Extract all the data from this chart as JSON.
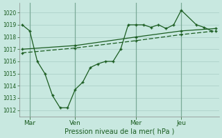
{
  "bg_color": "#c8e8e0",
  "grid_color": "#a8ccc4",
  "line_color": "#1a5c20",
  "xlabel": "Pression niveau de la mer( hPa )",
  "ylabel_vals": [
    1012,
    1013,
    1014,
    1015,
    1016,
    1017,
    1018,
    1019,
    1020
  ],
  "ylim": [
    1011.5,
    1020.8
  ],
  "xtick_labels": [
    "Mar",
    "Ven",
    "Mer",
    "Jeu"
  ],
  "xtick_positions": [
    0.5,
    3.5,
    7.5,
    10.5
  ],
  "xlim": [
    -0.2,
    13.0
  ],
  "vline_positions": [
    0.5,
    3.5,
    7.5,
    10.5
  ],
  "line_main_x": [
    0,
    0.5,
    1.0,
    1.5,
    2.0,
    2.5,
    3.0,
    3.5,
    4.0,
    4.5,
    5.0,
    5.5,
    6.0,
    6.5,
    7.0,
    7.5,
    8.0,
    8.5,
    9.0,
    9.5,
    10.0,
    10.5,
    11.5,
    12.0,
    12.5
  ],
  "line_main_y": [
    1019.0,
    1018.5,
    1016.0,
    1015.0,
    1013.2,
    1012.2,
    1012.2,
    1013.7,
    1014.3,
    1015.5,
    1015.8,
    1016.0,
    1016.0,
    1017.0,
    1019.0,
    1019.0,
    1019.0,
    1018.8,
    1019.0,
    1018.7,
    1019.0,
    1020.2,
    1019.0,
    1018.8,
    1018.5
  ],
  "line_upper_x": [
    0,
    3.5,
    7.5,
    10.5,
    12.8
  ],
  "line_upper_y": [
    1017.0,
    1017.3,
    1018.0,
    1018.5,
    1018.7
  ],
  "line_lower_x": [
    0,
    3.5,
    7.5,
    10.5,
    12.8
  ],
  "line_lower_y": [
    1016.7,
    1017.1,
    1017.7,
    1018.2,
    1018.5
  ]
}
